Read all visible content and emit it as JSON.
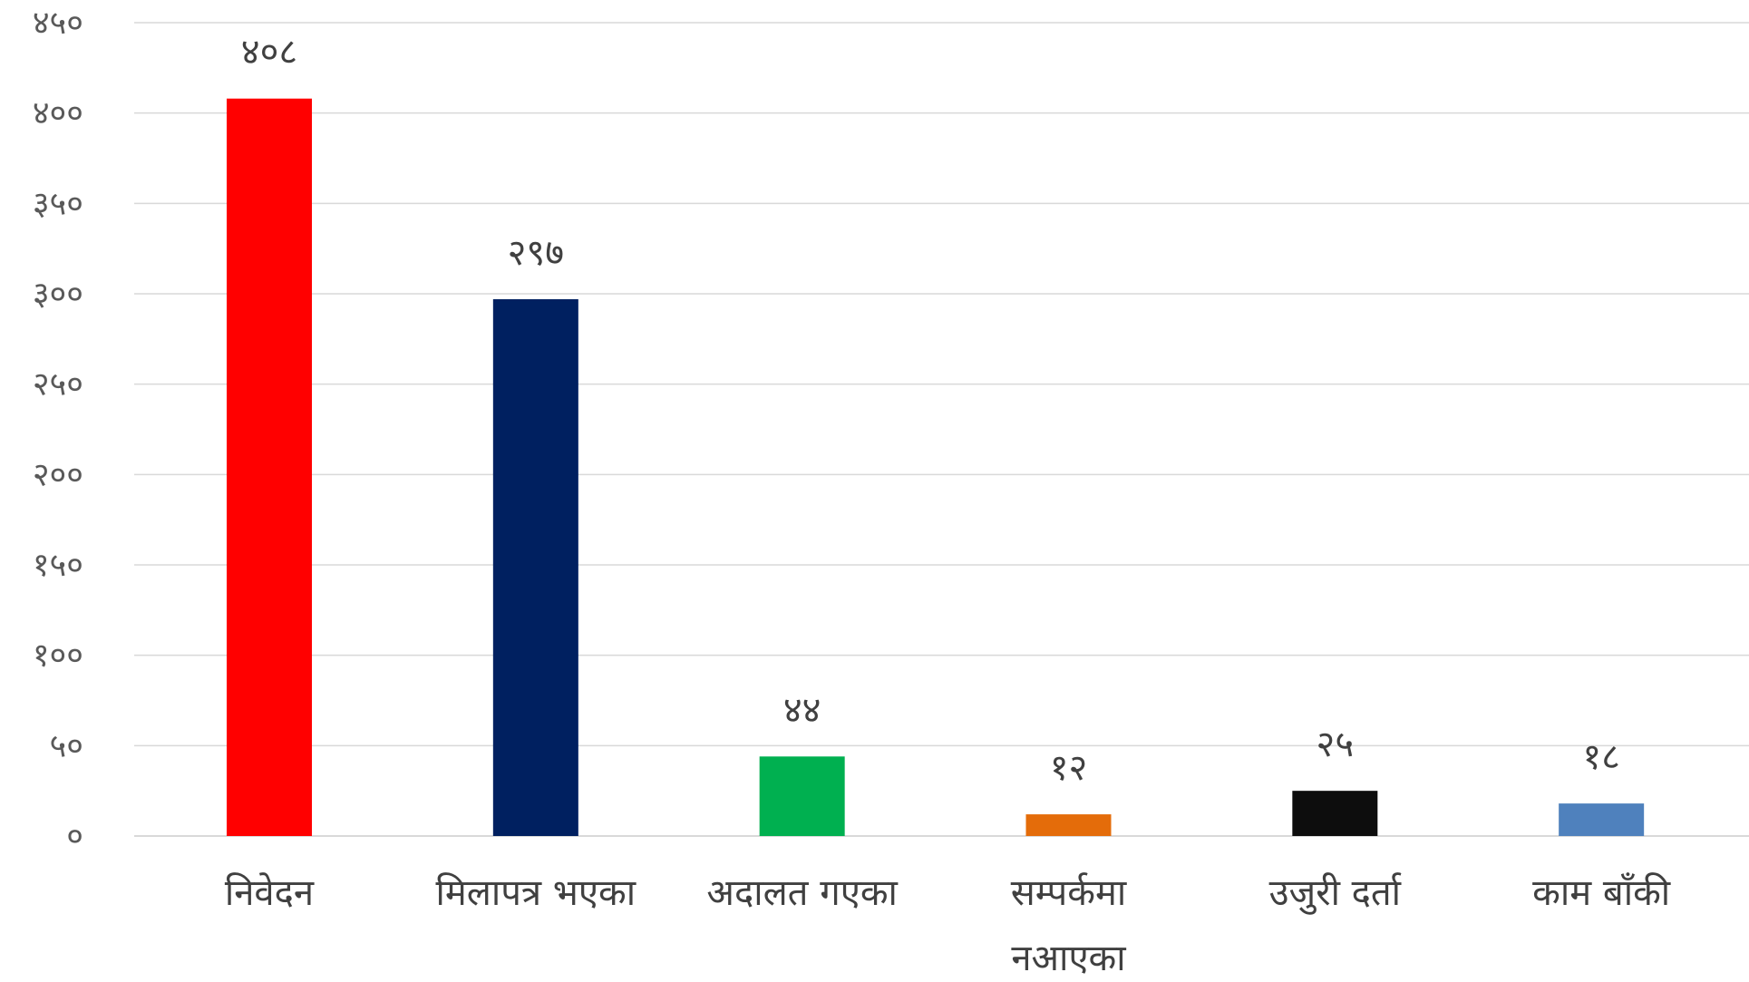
{
  "chart_data": {
    "type": "bar",
    "title": "",
    "xlabel": "",
    "ylabel": "",
    "ylim": [
      0,
      450
    ],
    "yticks": [
      0,
      50,
      100,
      150,
      200,
      250,
      300,
      350,
      400,
      450
    ],
    "ytick_labels": [
      "०",
      "५०",
      "१००",
      "१५०",
      "२००",
      "२५०",
      "३००",
      "३५०",
      "४००",
      "४५०"
    ],
    "grid": true,
    "legend": "none",
    "categories": [
      [
        "निवेदन"
      ],
      [
        "मिलापत्र भएका"
      ],
      [
        "अदालत गएका"
      ],
      [
        "सम्पर्कमा",
        "नआएका"
      ],
      [
        "उजुरी दर्ता"
      ],
      [
        "काम बाँकी"
      ]
    ],
    "values": [
      408,
      297,
      44,
      12,
      25,
      18
    ],
    "value_labels": [
      "४०८",
      "२९७",
      "४४",
      "१२",
      "२५",
      "१८"
    ],
    "colors": [
      "#ff0000",
      "#002060",
      "#00b050",
      "#e46c0a",
      "#0d0d0d",
      "#4f81bd"
    ]
  }
}
